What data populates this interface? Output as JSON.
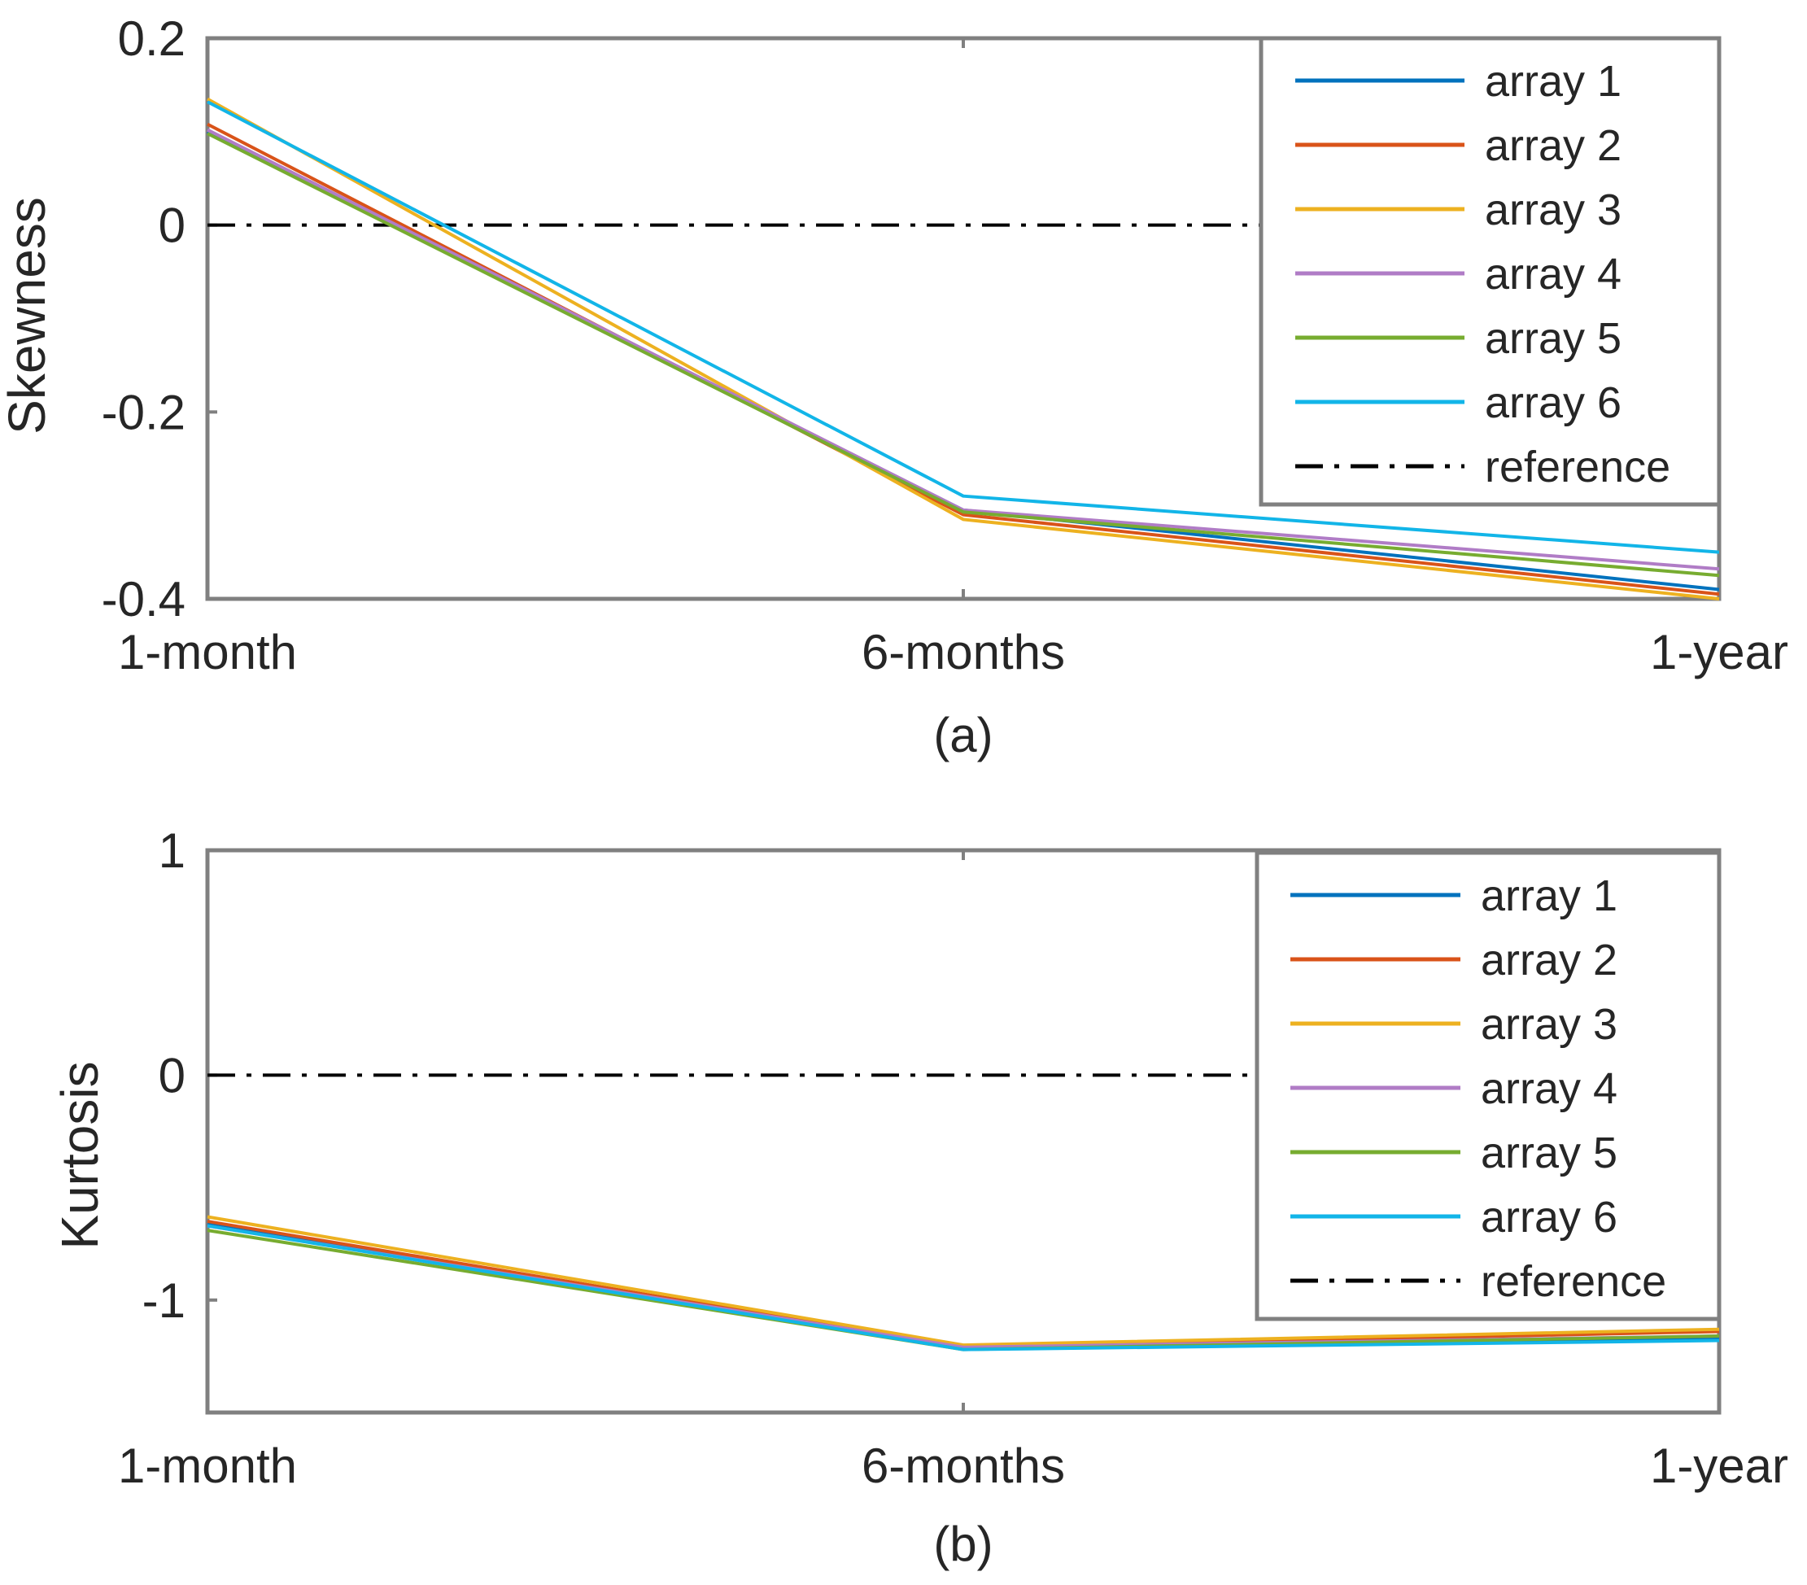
{
  "chart_data": [
    {
      "type": "line",
      "id": "a",
      "caption": "(a)",
      "ylabel": "Skewness",
      "xlabel": "",
      "categories": [
        "1-month",
        "6-months",
        "1-year"
      ],
      "ylim": [
        -0.4,
        0.2
      ],
      "yticks": [
        0.2,
        0,
        -0.2,
        -0.4
      ],
      "ytick_labels": [
        "0.2",
        "0",
        "-0.2",
        "-0.4"
      ],
      "grid": false,
      "legend_position": "top-right",
      "series": [
        {
          "name": "array 1",
          "color": "#0072BD",
          "values": [
            0.1,
            -0.305,
            -0.39
          ]
        },
        {
          "name": "array 2",
          "color": "#D95319",
          "values": [
            0.108,
            -0.31,
            -0.395
          ]
        },
        {
          "name": "array 3",
          "color": "#EDB120",
          "values": [
            0.135,
            -0.315,
            -0.4
          ]
        },
        {
          "name": "array 4",
          "color": "#B07CC6",
          "values": [
            0.102,
            -0.305,
            -0.368
          ]
        },
        {
          "name": "array 5",
          "color": "#77AC30",
          "values": [
            0.098,
            -0.307,
            -0.375
          ]
        },
        {
          "name": "array 6",
          "color": "#12B5E8",
          "values": [
            0.132,
            -0.29,
            -0.35
          ]
        }
      ],
      "reference": {
        "name": "reference",
        "value": 0,
        "color": "#000000"
      }
    },
    {
      "type": "line",
      "id": "b",
      "caption": "(b)",
      "ylabel": "Kurtosis",
      "xlabel": "",
      "categories": [
        "1-month",
        "6-months",
        "1-year"
      ],
      "ylim": [
        -1.5,
        1
      ],
      "yticks": [
        1,
        0,
        -1
      ],
      "ytick_labels": [
        "1",
        "0",
        "-1"
      ],
      "grid": false,
      "legend_position": "top-right",
      "series": [
        {
          "name": "array 1",
          "color": "#0072BD",
          "values": [
            -0.66,
            -1.21,
            -1.17
          ]
        },
        {
          "name": "array 2",
          "color": "#D95319",
          "values": [
            -0.65,
            -1.21,
            -1.14
          ]
        },
        {
          "name": "array 3",
          "color": "#EDB120",
          "values": [
            -0.63,
            -1.2,
            -1.13
          ]
        },
        {
          "name": "array 4",
          "color": "#B07CC6",
          "values": [
            -0.67,
            -1.21,
            -1.16
          ]
        },
        {
          "name": "array 5",
          "color": "#77AC30",
          "values": [
            -0.69,
            -1.22,
            -1.16
          ]
        },
        {
          "name": "array 6",
          "color": "#12B5E8",
          "values": [
            -0.67,
            -1.22,
            -1.18
          ]
        }
      ],
      "reference": {
        "name": "reference",
        "value": 0,
        "color": "#000000"
      }
    }
  ]
}
